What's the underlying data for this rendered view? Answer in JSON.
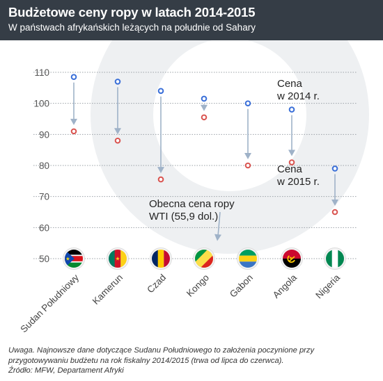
{
  "header": {
    "title": "Budżetowe ceny ropy w latach 2014-2015",
    "subtitle": "W państwach afrykańskich leżących na południe od Sahary"
  },
  "colors": {
    "header_bg": "#353d46",
    "price_2014": "#3a6fd8",
    "price_2015": "#d9534f",
    "arrow": "#9fb2c8",
    "watermark": "#eef0f2"
  },
  "chart_data": {
    "type": "scatter",
    "title": "Budżetowe ceny ropy w latach 2014-2015",
    "subtitle": "W państwach afrykańskich leżących na południe od Sahary",
    "categories": [
      "Sudan Południowy",
      "Kamerun",
      "Czad",
      "Kongo",
      "Gabon",
      "Angola",
      "Nigeria"
    ],
    "series": [
      {
        "name": "Cena w 2014 r.",
        "values": [
          108.5,
          107,
          104,
          101.5,
          100,
          98,
          79
        ]
      },
      {
        "name": "Cena w 2015 r.",
        "values": [
          91,
          88,
          75.5,
          95.5,
          80,
          81,
          65
        ]
      }
    ],
    "yticks": [
      110,
      100,
      90,
      80,
      70,
      60,
      50
    ],
    "ylim": [
      50,
      110
    ],
    "grid": true,
    "annotations": {
      "price_2014": [
        "Cena",
        "w 2014 r."
      ],
      "price_2015": [
        "Cena",
        "w 2015 r."
      ],
      "wti": [
        "Obecna cena ropy",
        "WTI (55,9 dol.)"
      ]
    },
    "wti_value": 55.9
  },
  "flags": [
    {
      "country": "Sudan Południowy",
      "icon": "south-sudan-flag-icon"
    },
    {
      "country": "Kamerun",
      "icon": "cameroon-flag-icon"
    },
    {
      "country": "Czad",
      "icon": "chad-flag-icon"
    },
    {
      "country": "Kongo",
      "icon": "congo-flag-icon"
    },
    {
      "country": "Gabon",
      "icon": "gabon-flag-icon"
    },
    {
      "country": "Angola",
      "icon": "angola-flag-icon"
    },
    {
      "country": "Nigeria",
      "icon": "nigeria-flag-icon"
    }
  ],
  "note": {
    "line1": "Uwaga. Najnowsze dane dotyczące Sudanu Południowego to założenia poczynione przy",
    "line2": "przygotowywaniu budżetu na rok fiskalny 2014/2015 (trwa od lipca do czerwca).",
    "line3": "Źródło: MFW, Departament Afryki"
  }
}
